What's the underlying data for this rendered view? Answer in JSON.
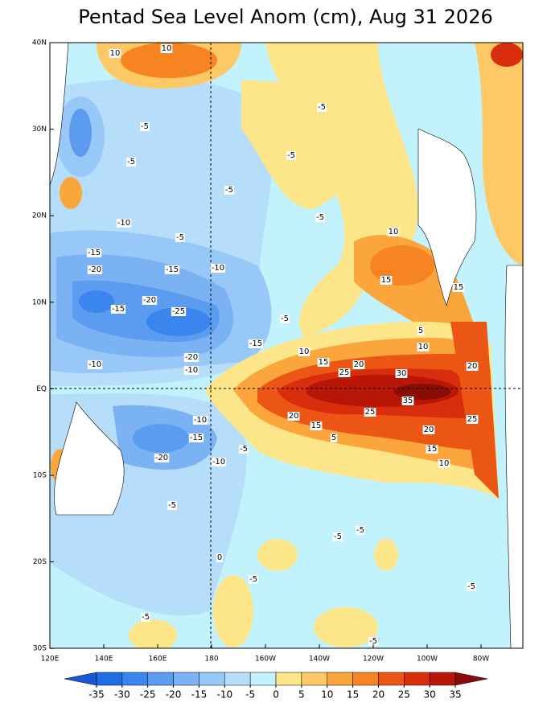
{
  "title": "Pentad Sea Level Anom (cm), Aug 31 2026",
  "map": {
    "lat_labels": [
      "40N",
      "30N",
      "20N",
      "10N",
      "EQ",
      "10S",
      "20S",
      "30S"
    ],
    "lon_labels": [
      "120E",
      "140E",
      "160E",
      "180",
      "160W",
      "140W",
      "120W",
      "100W",
      "80W"
    ],
    "contour_labels": [
      10,
      10,
      -5,
      -5,
      -5,
      -5,
      -5,
      -5,
      -5,
      -10,
      -15,
      -20,
      -15,
      -10,
      -20,
      -25,
      -15,
      -5,
      -15,
      -20,
      -10,
      -10,
      10,
      15,
      15,
      5,
      10,
      10,
      15,
      20,
      25,
      30,
      20,
      35,
      25,
      20,
      15,
      5,
      20,
      25,
      15,
      10,
      -10,
      -15,
      -20,
      -10,
      -5,
      -5,
      -5,
      -5,
      -5,
      -5,
      -5,
      -5,
      0
    ]
  },
  "colorbar": {
    "ticks": [
      -35,
      -30,
      -25,
      -20,
      -15,
      -10,
      -5,
      0,
      5,
      10,
      15,
      20,
      25,
      30,
      35
    ],
    "colors": [
      "#1858d8",
      "#1e6ee6",
      "#3a86ee",
      "#5c9cf0",
      "#7ab2f4",
      "#98c8f8",
      "#b6defa",
      "#c2f2fb",
      "#fde68a",
      "#fdc866",
      "#fba63c",
      "#f68420",
      "#ec5614",
      "#d82e0e",
      "#b81606",
      "#8a0c06"
    ]
  }
}
